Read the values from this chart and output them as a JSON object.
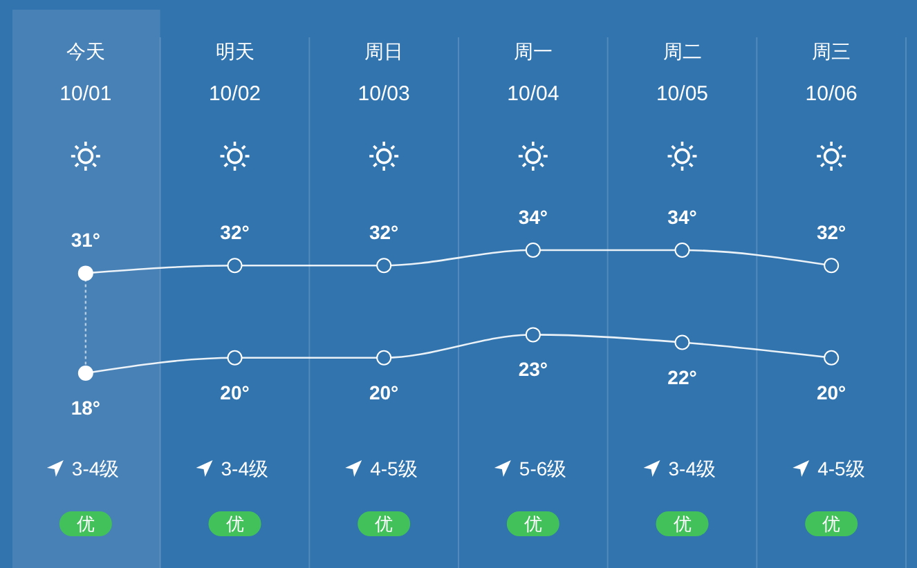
{
  "chart_data": {
    "type": "line",
    "categories": [
      "今天",
      "明天",
      "周日",
      "周一",
      "周二",
      "周三"
    ],
    "series": [
      {
        "color": "#ffffff",
        "values": [
          31,
          32,
          32,
          34,
          34,
          32
        ],
        "value_labels": [
          "31°",
          "32°",
          "32°",
          "34°",
          "34°",
          "32°"
        ]
      },
      {
        "color": "#ffffff",
        "values": [
          18,
          20,
          20,
          23,
          22,
          20
        ],
        "value_labels": [
          "18°",
          "20°",
          "20°",
          "23°",
          "22°",
          "20°"
        ]
      }
    ],
    "marker": "circle",
    "grid": "x",
    "bands": [
      {
        "axis": "x",
        "from": "今天",
        "to": "今天",
        "color": "#4781b5"
      }
    ],
    "ref_lines": [
      {
        "axis": "x",
        "value": "今天",
        "line_style": "dotted",
        "color": "#ffffff"
      }
    ],
    "annotations": [
      "10/01",
      "10/02",
      "10/03",
      "10/04",
      "10/05",
      "10/06",
      "3-4级",
      "3-4级",
      "4-5级",
      "5-6级",
      "3-4级",
      "4-5级",
      "优",
      "优",
      "优",
      "优",
      "优",
      "优"
    ]
  }
}
